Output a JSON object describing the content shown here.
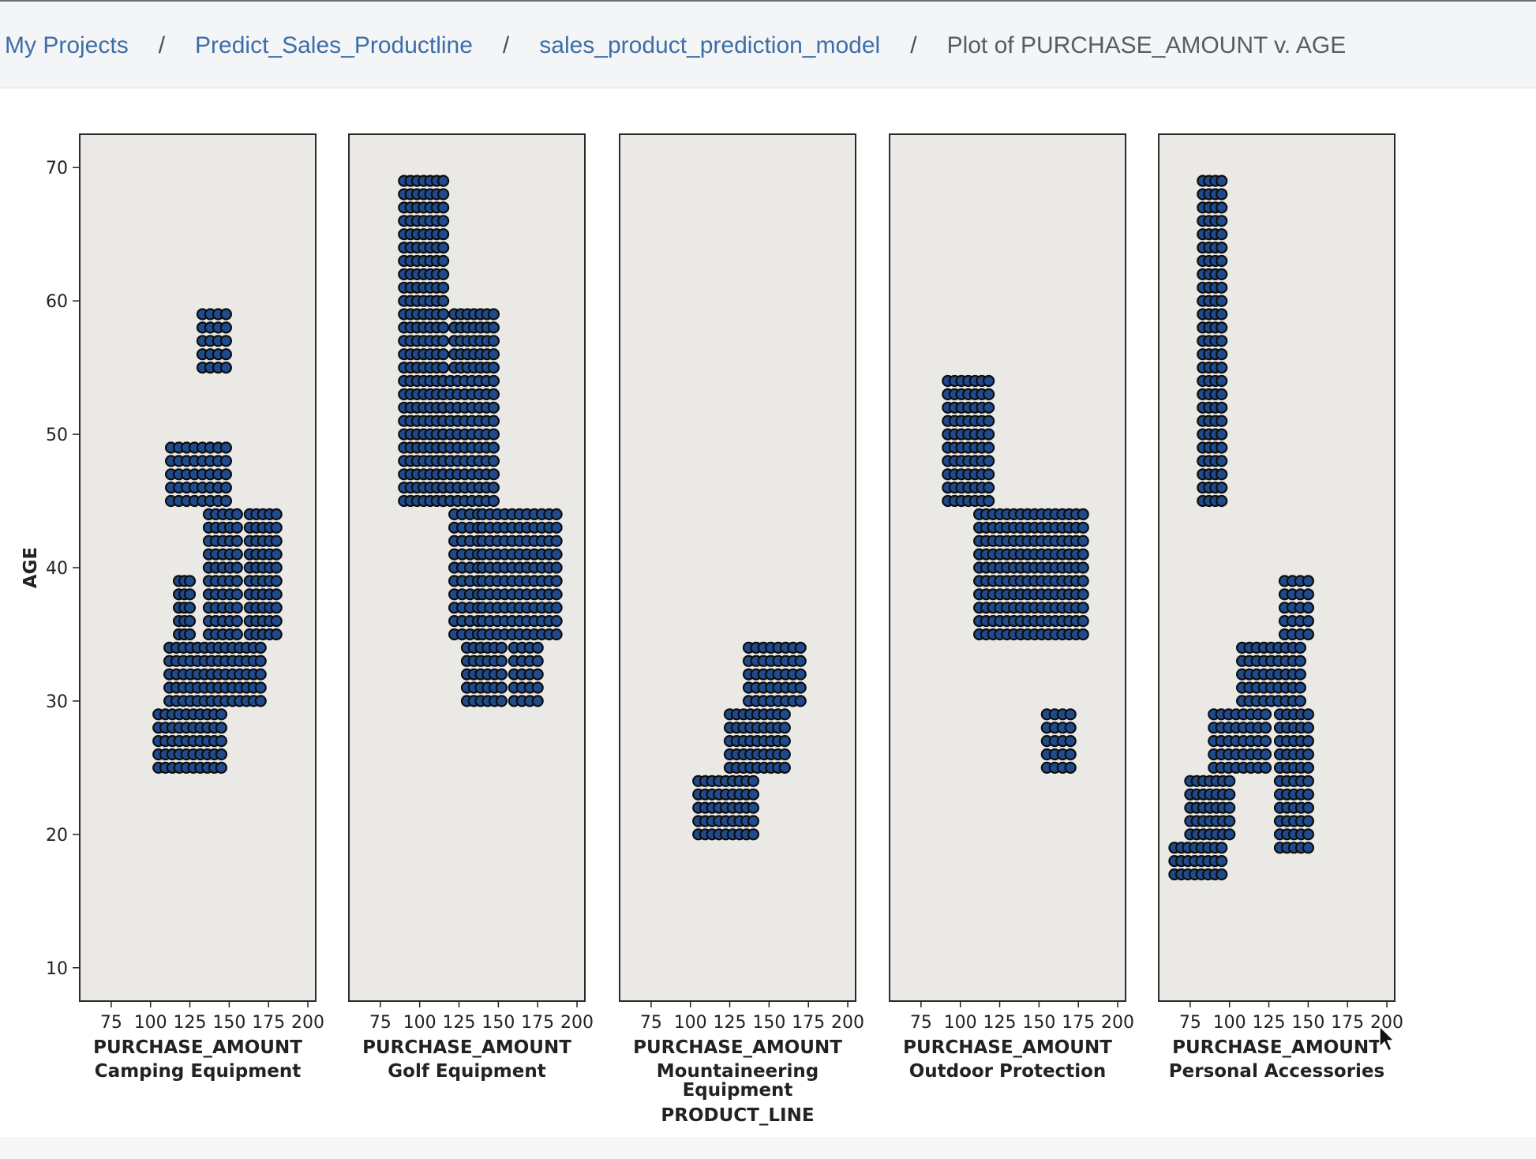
{
  "breadcrumb": {
    "items": [
      {
        "label": "My Projects",
        "link": true
      },
      {
        "label": "Predict_Sales_Productline",
        "link": true
      },
      {
        "label": "sales_product_prediction_model",
        "link": true
      },
      {
        "label": "Plot of PURCHASE_AMOUNT v. AGE",
        "link": false
      }
    ],
    "separator": "/"
  },
  "colors": {
    "point_fill": "#1f4a8c",
    "point_stroke": "#0d0d0d",
    "panel_bg": "#ebe9e6",
    "link": "#3d6ea8"
  },
  "chart_data": {
    "type": "scatter",
    "title": "",
    "ylabel": "AGE",
    "facet_label": "PRODUCT_LINE",
    "ylim": [
      7.5,
      72.5
    ],
    "xlim": [
      55,
      205
    ],
    "yticks": [
      10,
      20,
      30,
      40,
      50,
      60,
      70
    ],
    "xticks": [
      75,
      100,
      125,
      150,
      175,
      200
    ],
    "grid": false,
    "panels": [
      {
        "xlabel": "PURCHASE_AMOUNT",
        "category": "Camping Equipment",
        "clusters": [
          {
            "x": [
              105,
              145
            ],
            "y": [
              25,
              29
            ]
          },
          {
            "x": [
              112,
              170
            ],
            "y": [
              30,
              34
            ]
          },
          {
            "x": [
              118,
              125
            ],
            "y": [
              35,
              39
            ]
          },
          {
            "x": [
              137,
              155
            ],
            "y": [
              35,
              44
            ]
          },
          {
            "x": [
              163,
              180
            ],
            "y": [
              35,
              44
            ]
          },
          {
            "x": [
              113,
              128
            ],
            "y": [
              45,
              49
            ]
          },
          {
            "x": [
              133,
              148
            ],
            "y": [
              45,
              49
            ]
          },
          {
            "x": [
              133,
              148
            ],
            "y": [
              55,
              59
            ]
          }
        ]
      },
      {
        "xlabel": "PURCHASE_AMOUNT",
        "category": "Golf Equipment",
        "clusters": [
          {
            "x": [
              90,
              115
            ],
            "y": [
              45,
              69
            ]
          },
          {
            "x": [
              115,
              147
            ],
            "y": [
              45,
              54
            ]
          },
          {
            "x": [
              122,
              147
            ],
            "y": [
              55,
              59
            ]
          },
          {
            "x": [
              122,
              137
            ],
            "y": [
              35,
              44
            ]
          },
          {
            "x": [
              140,
              187
            ],
            "y": [
              35,
              44
            ]
          },
          {
            "x": [
              130,
              152
            ],
            "y": [
              30,
              34
            ]
          },
          {
            "x": [
              160,
              175
            ],
            "y": [
              30,
              34
            ]
          }
        ]
      },
      {
        "xlabel": "PURCHASE_AMOUNT",
        "category": "Mountaineering Equipment",
        "clusters": [
          {
            "x": [
              105,
              140
            ],
            "y": [
              20,
              24
            ]
          },
          {
            "x": [
              125,
              160
            ],
            "y": [
              25,
              29
            ]
          },
          {
            "x": [
              137,
              170
            ],
            "y": [
              30,
              34
            ]
          }
        ]
      },
      {
        "xlabel": "PURCHASE_AMOUNT",
        "category": "Outdoor Protection",
        "clusters": [
          {
            "x": [
              92,
              118
            ],
            "y": [
              45,
              54
            ]
          },
          {
            "x": [
              112,
              178
            ],
            "y": [
              35,
              44
            ]
          },
          {
            "x": [
              155,
              170
            ],
            "y": [
              25,
              29
            ]
          }
        ]
      },
      {
        "xlabel": "PURCHASE_AMOUNT",
        "category": "Personal Accessories",
        "clusters": [
          {
            "x": [
              83,
              95
            ],
            "y": [
              45,
              69
            ]
          },
          {
            "x": [
              65,
              95
            ],
            "y": [
              17,
              19
            ]
          },
          {
            "x": [
              75,
              100
            ],
            "y": [
              20,
              24
            ]
          },
          {
            "x": [
              90,
              123
            ],
            "y": [
              25,
              29
            ]
          },
          {
            "x": [
              108,
              145
            ],
            "y": [
              30,
              34
            ]
          },
          {
            "x": [
              132,
              150
            ],
            "y": [
              19,
              29
            ]
          },
          {
            "x": [
              135,
              150
            ],
            "y": [
              35,
              39
            ]
          }
        ]
      }
    ]
  }
}
